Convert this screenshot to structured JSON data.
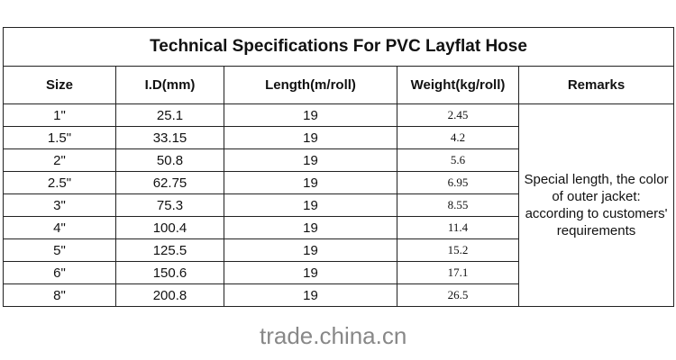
{
  "table": {
    "title": "Technical Specifications For PVC Layflat Hose",
    "headers": [
      "Size",
      "I.D(mm)",
      "Length(m/roll)",
      "Weight(kg/roll)",
      "Remarks"
    ],
    "rows": [
      [
        "1\"",
        "25.1",
        "19",
        "2.45"
      ],
      [
        "1.5\"",
        "33.15",
        "19",
        "4.2"
      ],
      [
        "2\"",
        "50.8",
        "19",
        "5.6"
      ],
      [
        "2.5\"",
        "62.75",
        "19",
        "6.95"
      ],
      [
        "3\"",
        "75.3",
        "19",
        "8.55"
      ],
      [
        "4\"",
        "100.4",
        "19",
        "11.4"
      ],
      [
        "5\"",
        "125.5",
        "19",
        "15.2"
      ],
      [
        "6\"",
        "150.6",
        "19",
        "17.1"
      ],
      [
        "8\"",
        "200.8",
        "19",
        "26.5"
      ]
    ],
    "remarks": "Special length,  the color of outer jacket: according to customers' requirements"
  },
  "watermark": "trade.china.cn"
}
